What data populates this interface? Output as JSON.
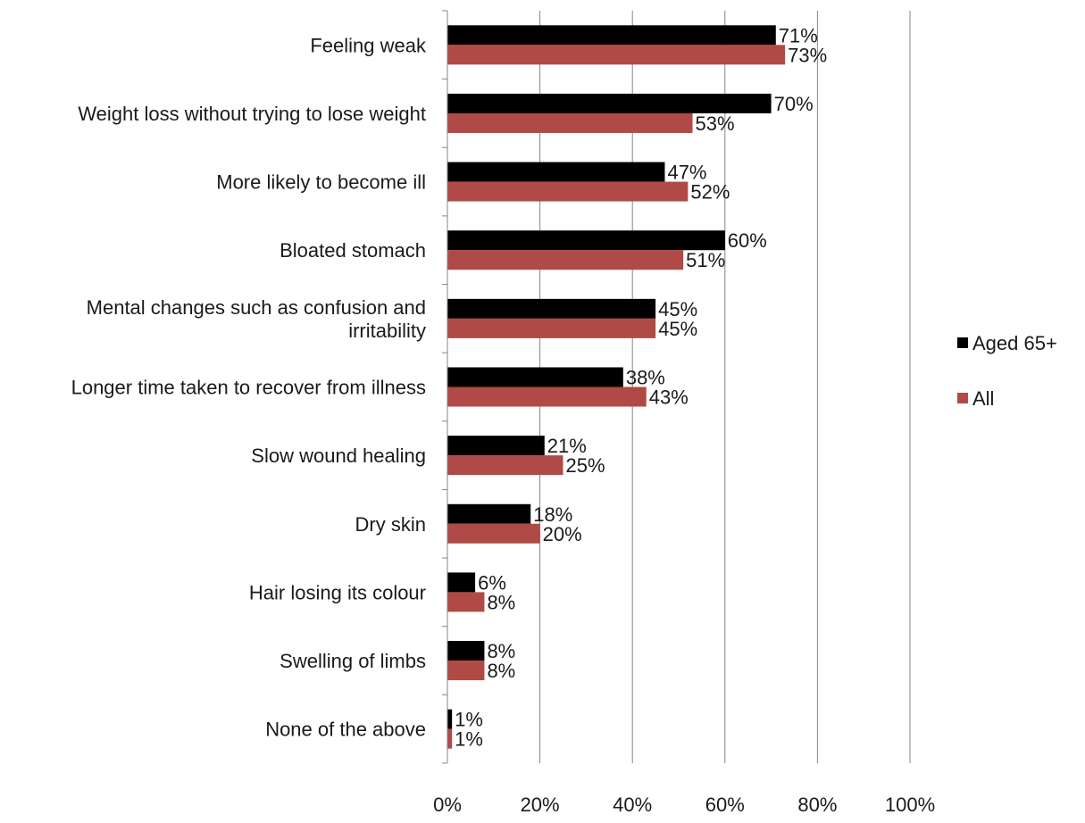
{
  "chart_data": {
    "type": "bar",
    "orientation": "horizontal",
    "categories": [
      "Feeling weak",
      "Weight loss without trying to lose weight",
      "More likely to become ill",
      "Bloated stomach",
      "Mental changes such as confusion and irritability",
      "Longer time taken to recover from illness",
      "Slow wound healing",
      "Dry skin",
      "Hair losing its colour",
      "Swelling of limbs",
      "None of the above"
    ],
    "category_label_lines": [
      [
        "Feeling weak"
      ],
      [
        "Weight loss without trying to lose weight"
      ],
      [
        "More likely to become ill"
      ],
      [
        "Bloated stomach"
      ],
      [
        "Mental changes such as confusion and",
        "irritability"
      ],
      [
        "Longer time taken to recover from illness"
      ],
      [
        "Slow wound healing"
      ],
      [
        "Dry skin"
      ],
      [
        "Hair losing its colour"
      ],
      [
        "Swelling of limbs"
      ],
      [
        "None of the above"
      ]
    ],
    "series": [
      {
        "name": "Aged 65+",
        "color": "#000000",
        "values": [
          71,
          70,
          47,
          60,
          45,
          38,
          21,
          18,
          6,
          8,
          1
        ],
        "labels": [
          "71%",
          "70%",
          "47%",
          "60%",
          "45%",
          "38%",
          "21%",
          "18%",
          "6%",
          "8%",
          "1%"
        ]
      },
      {
        "name": "All",
        "color": "#b04a46",
        "values": [
          73,
          53,
          52,
          51,
          45,
          43,
          25,
          20,
          8,
          8,
          1
        ],
        "labels": [
          "73%",
          "53%",
          "52%",
          "51%",
          "45%",
          "43%",
          "25%",
          "20%",
          "8%",
          "8%",
          "1%"
        ]
      }
    ],
    "xlim": [
      0,
      100
    ],
    "x_ticks": [
      0,
      20,
      40,
      60,
      80,
      100
    ],
    "x_tick_labels": [
      "0%",
      "20%",
      "40%",
      "60%",
      "80%",
      "100%"
    ],
    "grid": true,
    "legend_position": "right",
    "gridline_color": "#868686"
  }
}
